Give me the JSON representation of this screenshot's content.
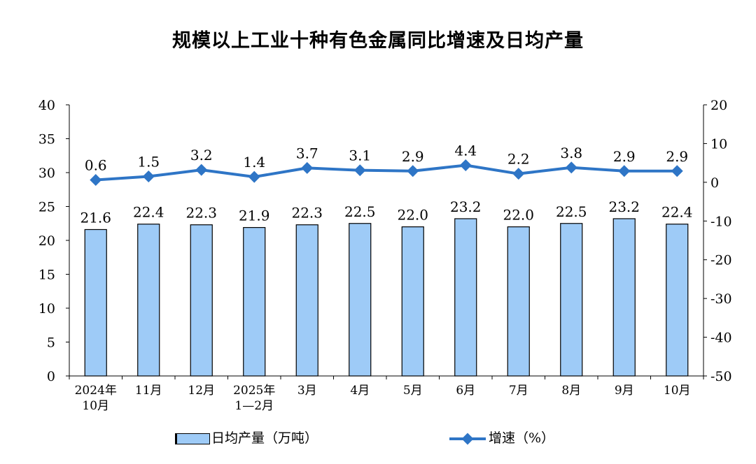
{
  "chart_data": {
    "type": "bar",
    "title": "规模以上工业十种有色金属同比增速及日均产量",
    "categories": [
      [
        "2024年",
        "10月"
      ],
      [
        "11月"
      ],
      [
        "12月"
      ],
      [
        "2025年",
        "1—2月"
      ],
      [
        "3月"
      ],
      [
        "4月"
      ],
      [
        "5月"
      ],
      [
        "6月"
      ],
      [
        "7月"
      ],
      [
        "8月"
      ],
      [
        "9月"
      ],
      [
        "10月"
      ]
    ],
    "series": [
      {
        "name": "日均产量（万吨）",
        "type": "bar",
        "axis": "left",
        "color": "#9ecbf7",
        "values": [
          21.6,
          22.4,
          22.3,
          21.9,
          22.3,
          22.5,
          22.0,
          23.2,
          22.0,
          22.5,
          23.2,
          22.4
        ],
        "labels": [
          "21.6",
          "22.4",
          "22.3",
          "21.9",
          "22.3",
          "22.5",
          "22.0",
          "23.2",
          "22.0",
          "22.5",
          "23.2",
          "22.4"
        ]
      },
      {
        "name": "增速（%）",
        "type": "line",
        "axis": "right",
        "color": "#2e75c6",
        "values": [
          0.6,
          1.5,
          3.2,
          1.4,
          3.7,
          3.1,
          2.9,
          4.4,
          2.2,
          3.8,
          2.9,
          2.9
        ],
        "labels": [
          "0.6",
          "1.5",
          "3.2",
          "1.4",
          "3.7",
          "3.1",
          "2.9",
          "4.4",
          "2.2",
          "3.8",
          "2.9",
          "2.9"
        ]
      }
    ],
    "ylim": [
      0,
      40
    ],
    "y_ticks": [
      "0",
      "5",
      "10",
      "15",
      "20",
      "25",
      "30",
      "35",
      "40"
    ],
    "y2lim": [
      -50,
      20
    ],
    "y2_ticks": [
      "-50",
      "-40",
      "-30",
      "-20",
      "-10",
      "0",
      "10",
      "20"
    ],
    "legend": "bottom",
    "grid": false
  }
}
